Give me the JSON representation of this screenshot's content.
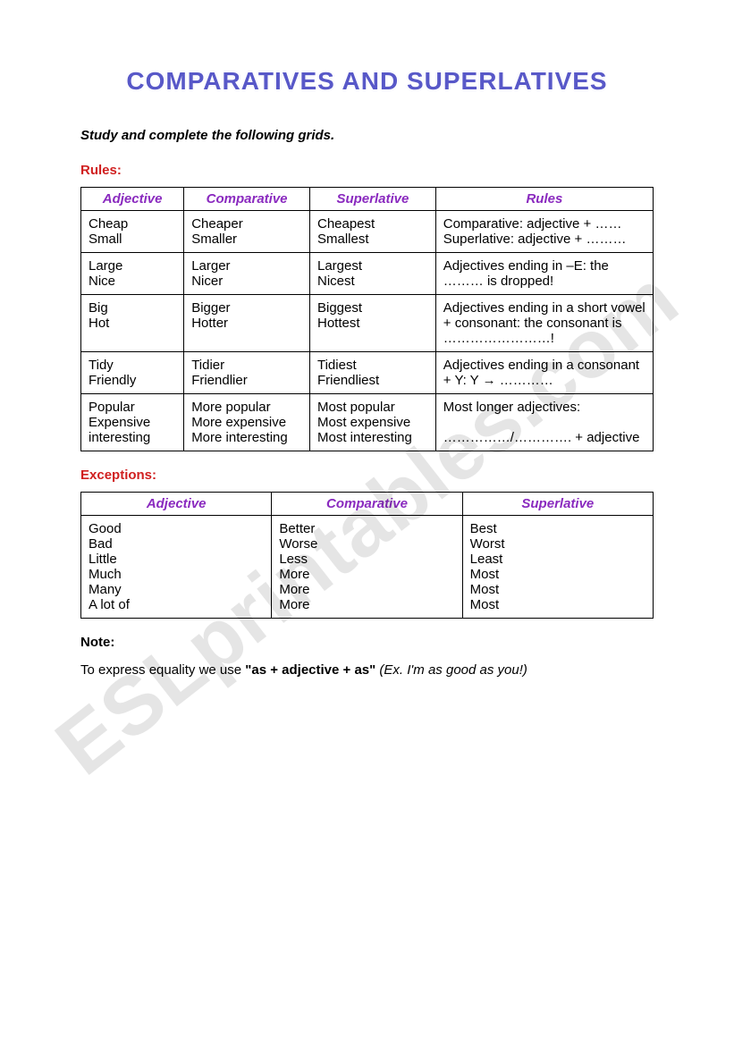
{
  "title": "COMPARATIVES AND SUPERLATIVES",
  "instruction": "Study and complete the following grids.",
  "watermark": "ESLprintables.com",
  "rules_section": {
    "label": "Rules:",
    "headers": [
      "Adjective",
      "Comparative",
      "Superlative",
      "Rules"
    ],
    "rows": [
      {
        "adj": "Cheap\nSmall",
        "comp": "Cheaper\nSmaller",
        "sup": "Cheapest\nSmallest",
        "rule": "Comparative: adjective + ……\nSuperlative: adjective + ………"
      },
      {
        "adj": "Large\nNice",
        "comp": "Larger\nNicer",
        "sup": "Largest\nNicest",
        "rule": "Adjectives ending in –E: the ……… is dropped!"
      },
      {
        "adj": "Big\nHot",
        "comp": "Bigger\nHotter",
        "sup": "Biggest\nHottest",
        "rule": "Adjectives ending in a short vowel + consonant: the consonant is ……………………!"
      },
      {
        "adj": "Tidy\nFriendly",
        "comp": "Tidier\nFriendlier",
        "sup": "Tidiest\nFriendliest",
        "rule": "Adjectives ending in a consonant + Y: Y → …………"
      },
      {
        "adj": "Popular\nExpensive\ninteresting",
        "comp": "More popular\nMore expensive\nMore interesting",
        "sup": "Most popular\nMost expensive\nMost interesting",
        "rule": "Most longer adjectives:\n\n……………/…………. + adjective"
      }
    ]
  },
  "exceptions_section": {
    "label": "Exceptions:",
    "headers": [
      "Adjective",
      "Comparative",
      "Superlative"
    ],
    "row": {
      "adj": "Good\nBad\nLittle\nMuch\nMany\nA lot of",
      "comp": "Better\nWorse\nLess\nMore\nMore\nMore",
      "sup": "Best\nWorst\nLeast\nMost\nMost\nMost"
    }
  },
  "note": {
    "label": "Note:",
    "prefix": "To express equality we use ",
    "bold": "\"as + adjective + as\"",
    "example": "  (Ex. I'm as good as you!)"
  }
}
